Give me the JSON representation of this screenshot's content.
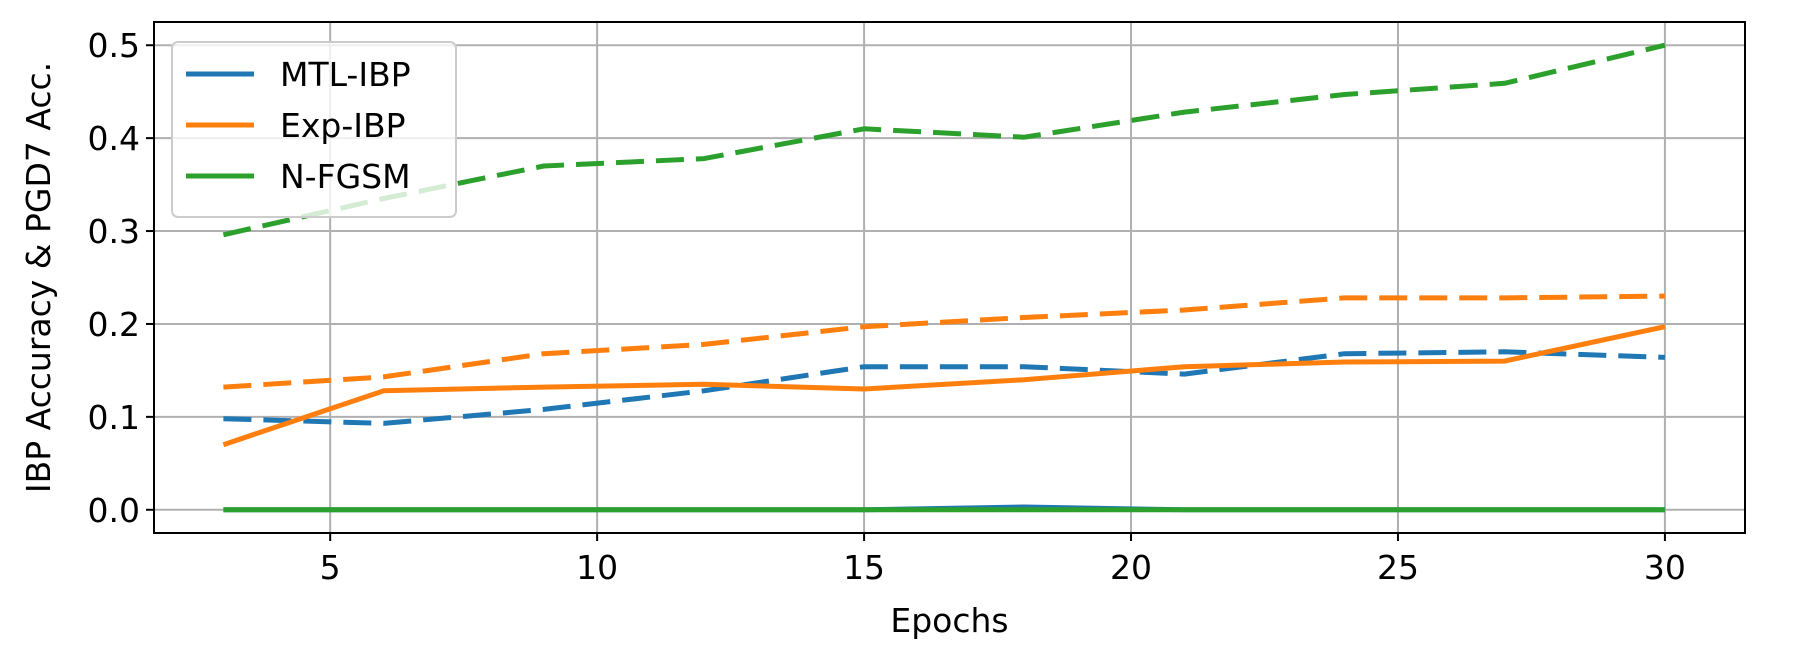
{
  "chart_data": {
    "type": "line",
    "title": "",
    "xlabel": "Epochs",
    "ylabel": "IBP Accuracy & PGD7 Acc.",
    "xlim": [
      1.7,
      31.5
    ],
    "ylim": [
      -0.025,
      0.525
    ],
    "xticks": [
      5,
      10,
      15,
      20,
      25,
      30
    ],
    "yticks": [
      0.0,
      0.1,
      0.2,
      0.3,
      0.4,
      0.5
    ],
    "xtick_labels": [
      "5",
      "10",
      "15",
      "20",
      "25",
      "30"
    ],
    "ytick_labels": [
      "0.0",
      "0.1",
      "0.2",
      "0.3",
      "0.4",
      "0.5"
    ],
    "grid": true,
    "legend_position": "top-left",
    "x": [
      3,
      6,
      9,
      12,
      15,
      18,
      21,
      24,
      27,
      30
    ],
    "series": [
      {
        "name": "MTL-IBP",
        "color": "#1f77b4",
        "style": "solid",
        "values": [
          0.0,
          0.0,
          0.0,
          0.0,
          0.0,
          0.003,
          0.0,
          0.0,
          0.0,
          0.0
        ]
      },
      {
        "name": "Exp-IBP",
        "color": "#ff7f0e",
        "style": "solid",
        "values": [
          0.07,
          0.128,
          0.132,
          0.135,
          0.13,
          0.14,
          0.154,
          0.159,
          0.16,
          0.197
        ]
      },
      {
        "name": "N-FGSM",
        "color": "#2ca02c",
        "style": "solid",
        "values": [
          0.0,
          0.0,
          0.0,
          0.0,
          0.0,
          0.0,
          0.0,
          0.0,
          0.0,
          0.0
        ]
      },
      {
        "name": "",
        "color": "#1f77b4",
        "style": "dashed",
        "values": [
          0.098,
          0.093,
          0.108,
          0.128,
          0.154,
          0.154,
          0.146,
          0.168,
          0.17,
          0.164
        ]
      },
      {
        "name": "",
        "color": "#ff7f0e",
        "style": "dashed",
        "values": [
          0.132,
          0.143,
          0.168,
          0.178,
          0.197,
          0.207,
          0.215,
          0.228,
          0.228,
          0.23
        ]
      },
      {
        "name": "",
        "color": "#2ca02c",
        "style": "dashed",
        "values": [
          0.296,
          0.335,
          0.37,
          0.378,
          0.41,
          0.401,
          0.428,
          0.447,
          0.459,
          0.5
        ]
      }
    ]
  }
}
